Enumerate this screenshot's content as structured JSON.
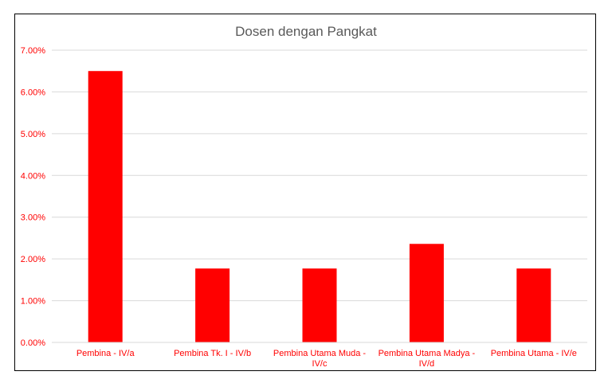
{
  "chart_data": {
    "type": "bar",
    "title": "Dosen dengan Pangkat",
    "xlabel": "",
    "ylabel": "",
    "categories": [
      [
        "Pembina - IV/a"
      ],
      [
        "Pembina Tk. I - IV/b"
      ],
      [
        "Pembina Utama Muda -",
        "IV/c"
      ],
      [
        "Pembina Utama Madya -",
        "IV/d"
      ],
      [
        "Pembina Utama - IV/e"
      ]
    ],
    "values": [
      6.5,
      1.77,
      1.77,
      2.36,
      1.77
    ],
    "ylim": [
      0,
      7
    ],
    "yticks": [
      "0.00%",
      "1.00%",
      "2.00%",
      "3.00%",
      "4.00%",
      "5.00%",
      "6.00%",
      "7.00%"
    ],
    "ytick_values": [
      0,
      1,
      2,
      3,
      4,
      5,
      6,
      7
    ],
    "grid": true,
    "legend": "none",
    "colors": {
      "bar": "#ff0000",
      "tick_text": "#ff0000",
      "title": "#595959",
      "grid": "#d9d9d9",
      "axis": "#d9d9d9"
    }
  }
}
